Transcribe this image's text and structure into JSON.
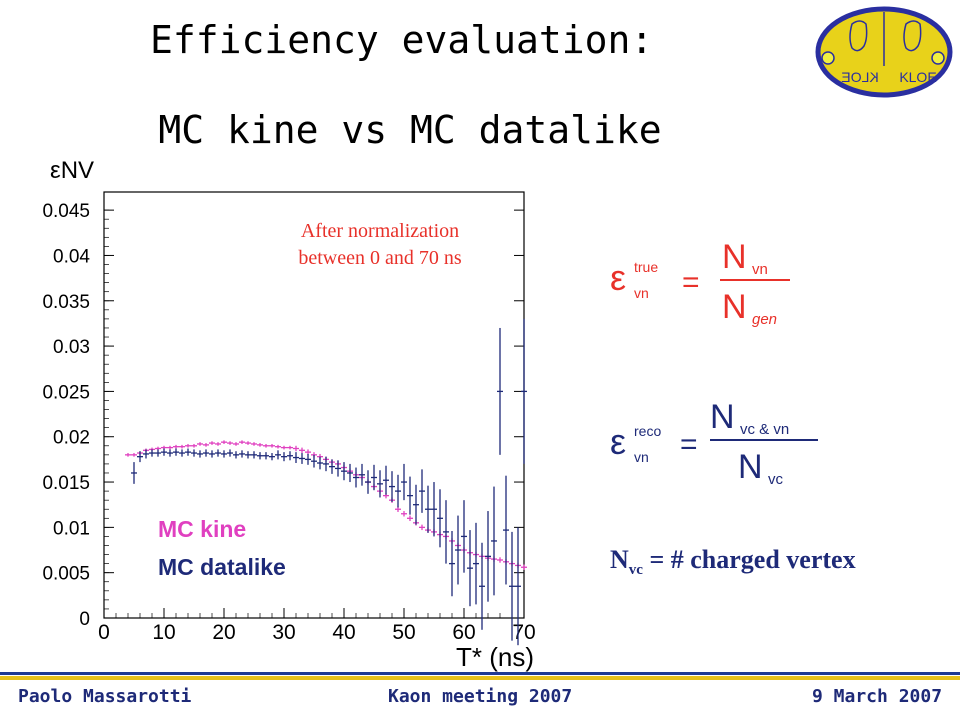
{
  "title": "Efficiency evaluation:",
  "subtitle": "MC kine vs  MC datalike",
  "footer": {
    "author": "Paolo Massarotti",
    "meeting": "Kaon  meeting 2007",
    "date": "9 March 2007"
  },
  "logo": {
    "text": "KLOE",
    "mirror_text": "KLOE"
  },
  "formulas": {
    "true_eff": {
      "symbol": "ε",
      "sup": "true",
      "sub": "vn",
      "num": "N",
      "num_sub": "vn",
      "den": "N",
      "den_sub": "gen"
    },
    "reco_eff": {
      "symbol": "ε",
      "sup": "reco",
      "sub": "vn",
      "num": "N",
      "num_sub": "vc & vn",
      "den": "N",
      "den_sub": "vc"
    },
    "nvc_def": {
      "main": "N",
      "sub": "vc",
      "rest": " = # charged vertex"
    }
  },
  "colors": {
    "kine": "#e040c0",
    "datalike": "#1e2a78",
    "annotation": "#e8312a",
    "formula": "#e8312a"
  },
  "chart_data": {
    "type": "scatter",
    "ylabel": "εNV",
    "xlabel": "T* (ns)",
    "xlim": [
      0,
      70
    ],
    "ylim": [
      0,
      0.047
    ],
    "xticks": [
      0,
      10,
      20,
      30,
      40,
      50,
      60,
      70
    ],
    "yticks": [
      0,
      0.005,
      0.01,
      0.015,
      0.02,
      0.025,
      0.03,
      0.035,
      0.04,
      0.045
    ],
    "ytick_labels": [
      "0",
      "0.005",
      "0.01",
      "0.015",
      "0.02",
      "0.025",
      "0.03",
      "0.035",
      "0.04",
      "0.045"
    ],
    "annotation": [
      "After normalization",
      "between 0 and 70 ns"
    ],
    "series": [
      {
        "name": "MC kine",
        "points": [
          [
            4,
            0.018,
            0.0002
          ],
          [
            5,
            0.018,
            0.0002
          ],
          [
            6,
            0.0182,
            0.0002
          ],
          [
            7,
            0.0185,
            0.0002
          ],
          [
            8,
            0.0186,
            0.0002
          ],
          [
            9,
            0.0187,
            0.0002
          ],
          [
            10,
            0.0188,
            0.0002
          ],
          [
            11,
            0.0188,
            0.0002
          ],
          [
            12,
            0.0189,
            0.0002
          ],
          [
            13,
            0.0189,
            0.0002
          ],
          [
            14,
            0.019,
            0.0002
          ],
          [
            15,
            0.019,
            0.0002
          ],
          [
            16,
            0.0192,
            0.0002
          ],
          [
            17,
            0.0191,
            0.0002
          ],
          [
            18,
            0.0193,
            0.0002
          ],
          [
            19,
            0.0192,
            0.0002
          ],
          [
            20,
            0.0194,
            0.0002
          ],
          [
            21,
            0.0193,
            0.0002
          ],
          [
            22,
            0.0192,
            0.0002
          ],
          [
            23,
            0.0194,
            0.0002
          ],
          [
            24,
            0.0193,
            0.0002
          ],
          [
            25,
            0.0192,
            0.0002
          ],
          [
            26,
            0.0191,
            0.0002
          ],
          [
            27,
            0.019,
            0.0002
          ],
          [
            28,
            0.019,
            0.0002
          ],
          [
            29,
            0.0189,
            0.0002
          ],
          [
            30,
            0.0188,
            0.0002
          ],
          [
            31,
            0.0188,
            0.0002
          ],
          [
            32,
            0.0187,
            0.0003
          ],
          [
            33,
            0.0185,
            0.0003
          ],
          [
            34,
            0.0183,
            0.0003
          ],
          [
            35,
            0.018,
            0.0003
          ],
          [
            36,
            0.0178,
            0.0003
          ],
          [
            37,
            0.0175,
            0.0003
          ],
          [
            38,
            0.0172,
            0.0003
          ],
          [
            39,
            0.017,
            0.0003
          ],
          [
            40,
            0.0166,
            0.0003
          ],
          [
            41,
            0.0162,
            0.0003
          ],
          [
            42,
            0.0158,
            0.0003
          ],
          [
            43,
            0.0155,
            0.0003
          ],
          [
            44,
            0.015,
            0.0003
          ],
          [
            45,
            0.0145,
            0.0003
          ],
          [
            46,
            0.014,
            0.0003
          ],
          [
            47,
            0.0135,
            0.0003
          ],
          [
            48,
            0.013,
            0.0003
          ],
          [
            49,
            0.012,
            0.0003
          ],
          [
            50,
            0.0115,
            0.0003
          ],
          [
            51,
            0.011,
            0.0003
          ],
          [
            52,
            0.0105,
            0.0003
          ],
          [
            53,
            0.01,
            0.0003
          ],
          [
            54,
            0.0097,
            0.0003
          ],
          [
            55,
            0.0095,
            0.0003
          ],
          [
            56,
            0.0092,
            0.0003
          ],
          [
            57,
            0.009,
            0.0003
          ],
          [
            58,
            0.0085,
            0.0003
          ],
          [
            59,
            0.008,
            0.0003
          ],
          [
            60,
            0.0075,
            0.0003
          ],
          [
            61,
            0.0072,
            0.0003
          ],
          [
            62,
            0.007,
            0.0003
          ],
          [
            63,
            0.0068,
            0.0003
          ],
          [
            64,
            0.0066,
            0.0003
          ],
          [
            65,
            0.0065,
            0.0003
          ],
          [
            66,
            0.0064,
            0.0003
          ],
          [
            67,
            0.0062,
            0.0003
          ],
          [
            68,
            0.006,
            0.0003
          ],
          [
            69,
            0.0058,
            0.0003
          ],
          [
            70,
            0.0056,
            0.0003
          ]
        ]
      },
      {
        "name": "MC datalike",
        "points": [
          [
            5,
            0.016,
            0.0012
          ],
          [
            6,
            0.0178,
            0.0006
          ],
          [
            7,
            0.0181,
            0.0005
          ],
          [
            8,
            0.0182,
            0.0004
          ],
          [
            9,
            0.0182,
            0.0004
          ],
          [
            10,
            0.0183,
            0.0004
          ],
          [
            11,
            0.0182,
            0.0004
          ],
          [
            12,
            0.0183,
            0.0004
          ],
          [
            13,
            0.0182,
            0.0004
          ],
          [
            14,
            0.0183,
            0.0004
          ],
          [
            15,
            0.0182,
            0.0004
          ],
          [
            16,
            0.0181,
            0.0004
          ],
          [
            17,
            0.0182,
            0.0004
          ],
          [
            18,
            0.0181,
            0.0004
          ],
          [
            19,
            0.0182,
            0.0004
          ],
          [
            20,
            0.0181,
            0.0004
          ],
          [
            21,
            0.0182,
            0.0004
          ],
          [
            22,
            0.018,
            0.0004
          ],
          [
            23,
            0.0181,
            0.0004
          ],
          [
            24,
            0.018,
            0.0004
          ],
          [
            25,
            0.018,
            0.0004
          ],
          [
            26,
            0.0179,
            0.0004
          ],
          [
            27,
            0.0179,
            0.0004
          ],
          [
            28,
            0.0178,
            0.0004
          ],
          [
            29,
            0.018,
            0.0005
          ],
          [
            30,
            0.0178,
            0.0005
          ],
          [
            31,
            0.0179,
            0.0005
          ],
          [
            32,
            0.0177,
            0.0006
          ],
          [
            33,
            0.0176,
            0.0006
          ],
          [
            34,
            0.0175,
            0.0006
          ],
          [
            35,
            0.0173,
            0.0007
          ],
          [
            36,
            0.0171,
            0.0007
          ],
          [
            37,
            0.017,
            0.0008
          ],
          [
            38,
            0.0167,
            0.0008
          ],
          [
            39,
            0.0165,
            0.0009
          ],
          [
            40,
            0.0162,
            0.001
          ],
          [
            41,
            0.016,
            0.001
          ],
          [
            42,
            0.0155,
            0.0011
          ],
          [
            43,
            0.0158,
            0.0012
          ],
          [
            44,
            0.015,
            0.0013
          ],
          [
            45,
            0.0155,
            0.0014
          ],
          [
            46,
            0.0148,
            0.0015
          ],
          [
            47,
            0.0152,
            0.0016
          ],
          [
            48,
            0.0145,
            0.0017
          ],
          [
            49,
            0.014,
            0.0018
          ],
          [
            50,
            0.015,
            0.002
          ],
          [
            51,
            0.0135,
            0.0021
          ],
          [
            52,
            0.0125,
            0.0022
          ],
          [
            53,
            0.014,
            0.0024
          ],
          [
            54,
            0.012,
            0.0026
          ],
          [
            55,
            0.012,
            0.003
          ],
          [
            56,
            0.011,
            0.0032
          ],
          [
            57,
            0.0095,
            0.0035
          ],
          [
            58,
            0.006,
            0.0036
          ],
          [
            59,
            0.0075,
            0.0038
          ],
          [
            60,
            0.009,
            0.004
          ],
          [
            61,
            0.0055,
            0.0042
          ],
          [
            62,
            0.006,
            0.0045
          ],
          [
            63,
            0.0035,
            0.0048
          ],
          [
            64,
            0.0068,
            0.005
          ],
          [
            65,
            0.0085,
            0.006
          ],
          [
            66,
            0.025,
            0.007
          ],
          [
            67,
            0.0097,
            0.006
          ],
          [
            68,
            0.0035,
            0.006
          ],
          [
            69,
            0.0035,
            0.0065
          ],
          [
            70,
            0.025,
            0.008
          ]
        ]
      }
    ]
  }
}
